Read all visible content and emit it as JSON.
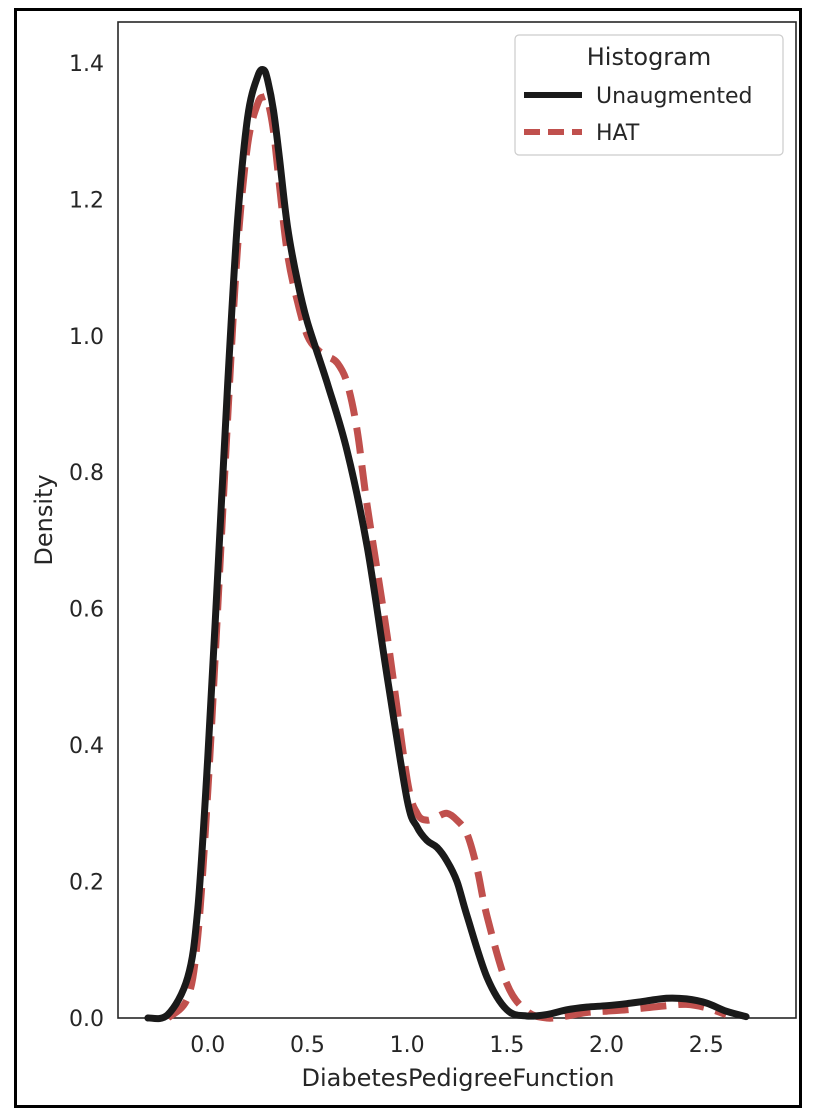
{
  "chart_data": {
    "type": "line",
    "title": "",
    "xlabel": "DiabetesPedigreeFunction",
    "ylabel": "Density",
    "xlim": [
      -0.45,
      2.95
    ],
    "ylim": [
      0.0,
      1.46
    ],
    "xticks": [
      0.0,
      0.5,
      1.0,
      1.5,
      2.0,
      2.5
    ],
    "xtick_labels": [
      "0.0",
      "0.5",
      "1.0",
      "1.5",
      "2.0",
      "2.5"
    ],
    "yticks": [
      0.0,
      0.2,
      0.4,
      0.6,
      0.8,
      1.0,
      1.2,
      1.4
    ],
    "ytick_labels": [
      "0.0",
      "0.2",
      "0.4",
      "0.6",
      "0.8",
      "1.0",
      "1.2",
      "1.4"
    ],
    "grid": false,
    "legend": {
      "title": "Histogram",
      "position": "top-right"
    },
    "series": [
      {
        "name": "Unaugmented",
        "color": "#1a1a1a",
        "style": "solid",
        "x": [
          -0.3,
          -0.2,
          -0.1,
          -0.05,
          0.0,
          0.05,
          0.1,
          0.15,
          0.2,
          0.25,
          0.28,
          0.3,
          0.33,
          0.36,
          0.4,
          0.45,
          0.5,
          0.6,
          0.7,
          0.8,
          0.9,
          1.0,
          1.05,
          1.1,
          1.15,
          1.2,
          1.25,
          1.3,
          1.4,
          1.5,
          1.6,
          1.7,
          1.8,
          1.9,
          2.0,
          2.1,
          2.2,
          2.3,
          2.4,
          2.5,
          2.6,
          2.7
        ],
        "y": [
          0.0,
          0.005,
          0.06,
          0.16,
          0.38,
          0.65,
          0.93,
          1.17,
          1.32,
          1.38,
          1.39,
          1.375,
          1.33,
          1.26,
          1.16,
          1.08,
          1.02,
          0.93,
          0.83,
          0.69,
          0.5,
          0.32,
          0.28,
          0.26,
          0.25,
          0.23,
          0.2,
          0.15,
          0.06,
          0.012,
          0.003,
          0.005,
          0.012,
          0.016,
          0.018,
          0.021,
          0.025,
          0.029,
          0.028,
          0.022,
          0.01,
          0.002
        ]
      },
      {
        "name": "HAT",
        "color": "#c0504d",
        "style": "dashed",
        "x": [
          -0.2,
          -0.1,
          -0.05,
          0.0,
          0.05,
          0.1,
          0.15,
          0.2,
          0.25,
          0.28,
          0.3,
          0.33,
          0.36,
          0.4,
          0.45,
          0.5,
          0.55,
          0.6,
          0.65,
          0.7,
          0.75,
          0.8,
          0.9,
          1.0,
          1.05,
          1.1,
          1.15,
          1.2,
          1.25,
          1.3,
          1.35,
          1.4,
          1.5,
          1.6,
          1.7,
          1.8,
          1.9,
          2.0,
          2.1,
          2.2,
          2.3,
          2.4,
          2.5,
          2.6
        ],
        "y": [
          0.0,
          0.03,
          0.12,
          0.33,
          0.6,
          0.88,
          1.13,
          1.28,
          1.34,
          1.35,
          1.345,
          1.3,
          1.22,
          1.12,
          1.05,
          1.0,
          0.98,
          0.97,
          0.96,
          0.93,
          0.86,
          0.75,
          0.56,
          0.35,
          0.3,
          0.29,
          0.295,
          0.3,
          0.29,
          0.27,
          0.22,
          0.15,
          0.05,
          0.01,
          0.0,
          0.003,
          0.008,
          0.01,
          0.012,
          0.015,
          0.018,
          0.02,
          0.015,
          0.005
        ]
      }
    ]
  }
}
